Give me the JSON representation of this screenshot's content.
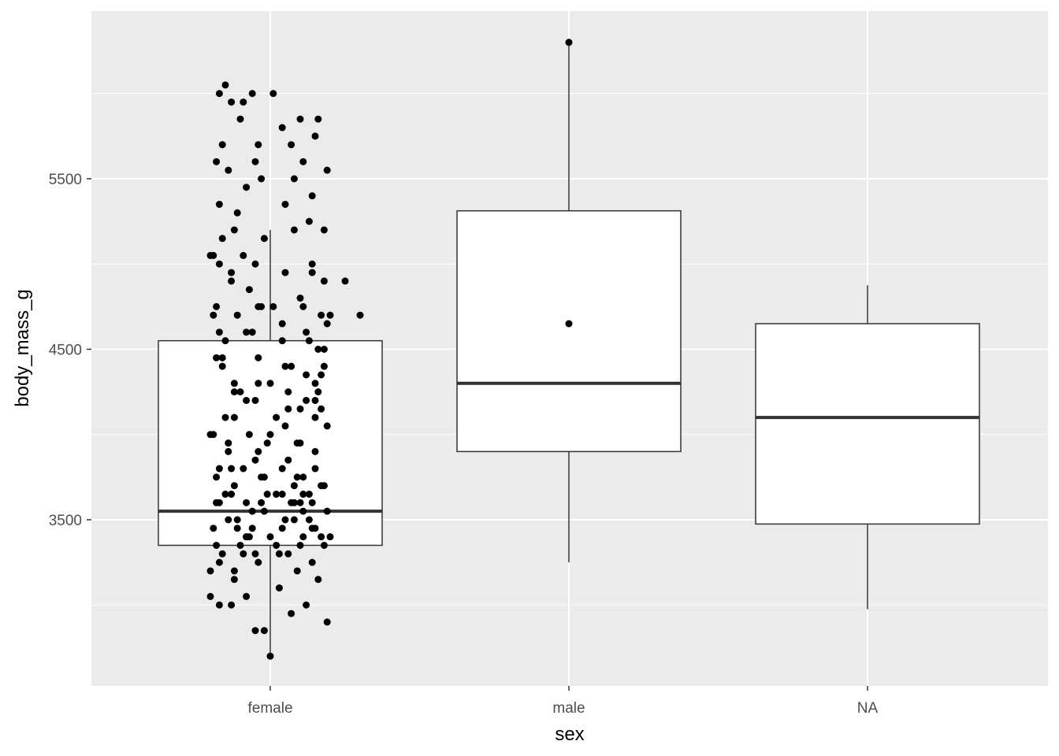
{
  "chart_data": {
    "type": "boxplot",
    "xlabel": "sex",
    "ylabel": "body_mass_g",
    "categories": [
      "female",
      "male",
      "NA"
    ],
    "ylim": [
      2550,
      6500
    ],
    "yticks": [
      3500,
      4500,
      5500
    ],
    "y_minor_ticks": [
      3000,
      4000,
      5000,
      6000
    ],
    "grid": true,
    "boxes": [
      {
        "category": "female",
        "min": 2700,
        "q1": 3350,
        "median": 3550,
        "q3": 4550,
        "max": 5200
      },
      {
        "category": "male",
        "min": 3250,
        "q1": 3900,
        "median": 4300,
        "q3": 5312,
        "max": 6300
      },
      {
        "category": "NA",
        "min": 2975,
        "q1": 3475,
        "median": 4100,
        "q3": 4650,
        "max": 4875
      }
    ],
    "points": [
      [
        -0.2,
        5050
      ],
      [
        -0.16,
        5150
      ],
      [
        -0.12,
        5200
      ],
      [
        -0.02,
        5150
      ],
      [
        0.08,
        5200
      ],
      [
        -0.17,
        5000
      ],
      [
        -0.05,
        5000
      ],
      [
        0.05,
        4950
      ],
      [
        0.14,
        4950
      ],
      [
        0.18,
        4900
      ],
      [
        -0.07,
        4850
      ],
      [
        -0.13,
        4900
      ],
      [
        0.1,
        4800
      ],
      [
        0.01,
        4750
      ],
      [
        0.17,
        4700
      ],
      [
        -0.04,
        4750
      ],
      [
        -0.11,
        4700
      ],
      [
        0.04,
        4650
      ],
      [
        0.19,
        4650
      ],
      [
        -0.19,
        4700
      ],
      [
        -0.06,
        4600
      ],
      [
        -0.15,
        4550
      ],
      [
        0.12,
        4600
      ],
      [
        0.13,
        4550
      ],
      [
        -0.18,
        4450
      ],
      [
        0.16,
        4500
      ],
      [
        -0.16,
        4400
      ],
      [
        0.05,
        4400
      ],
      [
        0.18,
        4400
      ],
      [
        -0.04,
        4300
      ],
      [
        0.15,
        4300
      ],
      [
        -0.08,
        4200
      ],
      [
        0.12,
        4200
      ],
      [
        0.06,
        4150
      ],
      [
        0.17,
        4150
      ],
      [
        -0.2,
        4000
      ],
      [
        0.0,
        4000
      ],
      [
        0.1,
        3950
      ],
      [
        -0.14,
        3900
      ],
      [
        -0.05,
        3850
      ],
      [
        0.04,
        3800
      ],
      [
        0.15,
        3800
      ],
      [
        -0.18,
        3750
      ],
      [
        -0.03,
        3750
      ],
      [
        0.08,
        3700
      ],
      [
        -0.12,
        3700
      ],
      [
        0.02,
        3650
      ],
      [
        0.13,
        3650
      ],
      [
        -0.17,
        3600
      ],
      [
        -0.08,
        3600
      ],
      [
        0.1,
        3600
      ],
      [
        0.19,
        3550
      ],
      [
        -0.02,
        3550
      ],
      [
        -0.14,
        3500
      ],
      [
        0.05,
        3500
      ],
      [
        0.15,
        3450
      ],
      [
        -0.19,
        3450
      ],
      [
        -0.06,
        3450
      ],
      [
        0.11,
        3400
      ],
      [
        0.0,
        3400
      ],
      [
        -0.1,
        3350
      ],
      [
        0.18,
        3350
      ],
      [
        -0.16,
        3300
      ],
      [
        0.06,
        3300
      ],
      [
        -0.04,
        3250
      ],
      [
        0.14,
        3250
      ],
      [
        -0.2,
        3200
      ],
      [
        0.09,
        3200
      ],
      [
        -0.12,
        3150
      ],
      [
        0.16,
        3150
      ],
      [
        0.03,
        3100
      ],
      [
        -0.08,
        3050
      ],
      [
        -0.2,
        3050
      ],
      [
        0.12,
        3000
      ],
      [
        -0.13,
        3000
      ],
      [
        0.07,
        2950
      ],
      [
        0.19,
        2900
      ],
      [
        -0.05,
        2850
      ],
      [
        -0.02,
        2850
      ],
      [
        0.0,
        2700
      ],
      [
        -0.01,
        3650
      ],
      [
        0.07,
        3600
      ],
      [
        -0.11,
        3500
      ],
      [
        0.14,
        3450
      ],
      [
        -0.07,
        3400
      ],
      [
        0.02,
        3350
      ],
      [
        0.17,
        3700
      ],
      [
        -0.15,
        3650
      ],
      [
        0.11,
        3550
      ],
      [
        -0.09,
        3300
      ],
      [
        0.2,
        3400
      ],
      [
        0.04,
        3450
      ],
      [
        -0.18,
        3350
      ],
      [
        0.13,
        3500
      ],
      [
        -0.03,
        3600
      ],
      [
        0.09,
        3750
      ],
      [
        -0.13,
        3800
      ],
      [
        1.0,
        6300
      ],
      [
        -0.15,
        6050
      ],
      [
        -0.17,
        6000
      ],
      [
        -0.13,
        5950
      ],
      [
        -0.06,
        6000
      ],
      [
        -0.09,
        5950
      ],
      [
        0.01,
        6000
      ],
      [
        0.1,
        5850
      ],
      [
        0.16,
        5850
      ],
      [
        -0.1,
        5850
      ],
      [
        0.04,
        5800
      ],
      [
        -0.16,
        5700
      ],
      [
        -0.04,
        5700
      ],
      [
        0.07,
        5700
      ],
      [
        0.15,
        5750
      ],
      [
        -0.18,
        5600
      ],
      [
        -0.05,
        5600
      ],
      [
        0.11,
        5600
      ],
      [
        -0.14,
        5550
      ],
      [
        0.19,
        5550
      ],
      [
        -0.03,
        5500
      ],
      [
        0.08,
        5500
      ],
      [
        -0.08,
        5450
      ],
      [
        0.14,
        5400
      ],
      [
        -0.17,
        5350
      ],
      [
        0.05,
        5350
      ],
      [
        -0.11,
        5300
      ],
      [
        0.13,
        5250
      ],
      [
        0.18,
        5200
      ],
      [
        -0.19,
        5050
      ],
      [
        -0.09,
        5050
      ],
      [
        0.14,
        5000
      ],
      [
        -0.13,
        4950
      ],
      [
        -0.03,
        4750
      ],
      [
        0.11,
        4750
      ],
      [
        0.2,
        4700
      ],
      [
        -0.17,
        4600
      ],
      [
        -0.08,
        4600
      ],
      [
        0.04,
        4550
      ],
      [
        0.18,
        4500
      ],
      [
        -0.16,
        4450
      ],
      [
        0.07,
        4400
      ],
      [
        0.17,
        4350
      ],
      [
        -0.12,
        4300
      ],
      [
        0.0,
        4300
      ],
      [
        0.16,
        4250
      ],
      [
        -0.05,
        4200
      ],
      [
        0.1,
        4150
      ],
      [
        -0.15,
        4100
      ],
      [
        0.02,
        4100
      ],
      [
        0.19,
        4050
      ],
      [
        -0.19,
        4000
      ],
      [
        -0.07,
        4000
      ],
      [
        0.09,
        3950
      ],
      [
        -0.14,
        3950
      ],
      [
        0.15,
        3900
      ],
      [
        -0.04,
        3900
      ],
      [
        0.06,
        3850
      ],
      [
        -0.17,
        3800
      ],
      [
        -0.09,
        3800
      ],
      [
        0.11,
        3750
      ],
      [
        -0.02,
        3750
      ],
      [
        0.18,
        3700
      ],
      [
        -0.13,
        3650
      ],
      [
        0.04,
        3650
      ],
      [
        -0.18,
        3600
      ],
      [
        0.14,
        3600
      ],
      [
        -0.06,
        3550
      ],
      [
        0.08,
        3500
      ],
      [
        -0.11,
        3450
      ],
      [
        0.17,
        3400
      ],
      [
        -0.08,
        3400
      ],
      [
        0.03,
        3300
      ],
      [
        -0.17,
        3250
      ],
      [
        -0.05,
        3300
      ],
      [
        0.1,
        3350
      ],
      [
        -0.01,
        3950
      ],
      [
        0.05,
        4050
      ],
      [
        -0.1,
        4250
      ],
      [
        0.12,
        4350
      ],
      [
        -0.04,
        4450
      ],
      [
        0.15,
        4200
      ],
      [
        -0.12,
        4100
      ],
      [
        0.06,
        4250
      ],
      [
        0.08,
        3600
      ],
      [
        0.25,
        4900
      ],
      [
        0.3,
        4700
      ],
      [
        1.0,
        4650
      ],
      [
        -0.18,
        4750
      ],
      [
        -0.12,
        4250
      ],
      [
        0.15,
        4100
      ],
      [
        0.11,
        3650
      ],
      [
        -0.08,
        3400
      ],
      [
        -0.12,
        3200
      ],
      [
        -0.17,
        3000
      ]
    ]
  }
}
